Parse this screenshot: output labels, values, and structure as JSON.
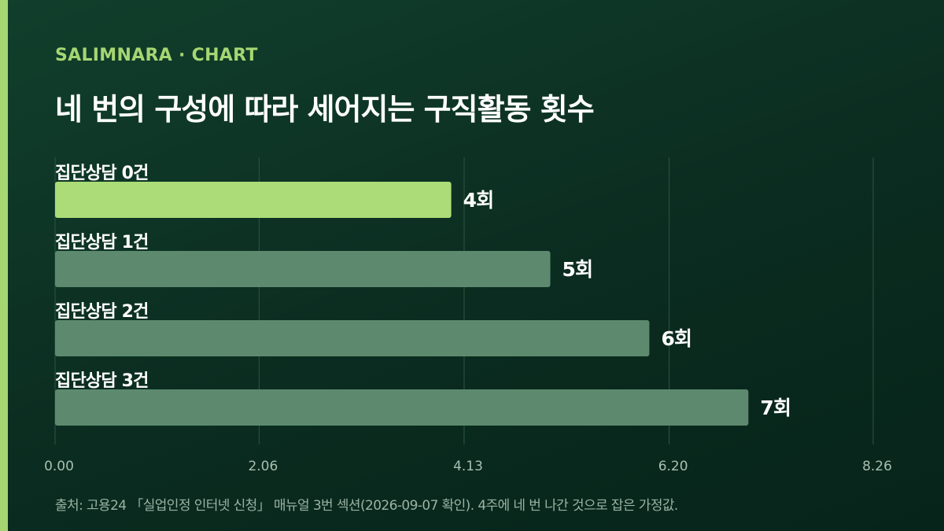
{
  "header": {
    "brand": "SALIMNARA · CHART",
    "title": "네 번의 구성에 따라 세어지는 구직활동 횟수"
  },
  "chart_data": {
    "type": "bar",
    "orientation": "horizontal",
    "categories": [
      "집단상담 0건",
      "집단상담 1건",
      "집단상담 2건",
      "집단상담 3건"
    ],
    "values": [
      4,
      5,
      6,
      7
    ],
    "value_labels": [
      "4회",
      "5회",
      "6회",
      "7회"
    ],
    "highlight_index": 0,
    "xlim": [
      0,
      8.26
    ],
    "x_ticks": [
      0.0,
      2.06,
      4.13,
      6.2,
      8.26
    ],
    "x_tick_labels": [
      "0.00",
      "2.06",
      "4.13",
      "6.20",
      "8.26"
    ],
    "grid": true,
    "title": "네 번의 구성에 따라 세어지는 구직활동 횟수",
    "xlabel": "",
    "ylabel": ""
  },
  "colors": {
    "highlight_bar": "#acdc78",
    "normal_bar": "#5d8a6e",
    "gridline": "#2b5641",
    "category_label": "#ffffff",
    "value_label": "#ffffff",
    "tick_label": "#a9bfb1"
  },
  "footer": {
    "source_note": "출처: 고용24 「실업인정 인터넷 신청」 매뉴얼 3번 섹션(2026-09-07 확인). 4주에 네 번 나간 것으로 잡은 가정값."
  }
}
